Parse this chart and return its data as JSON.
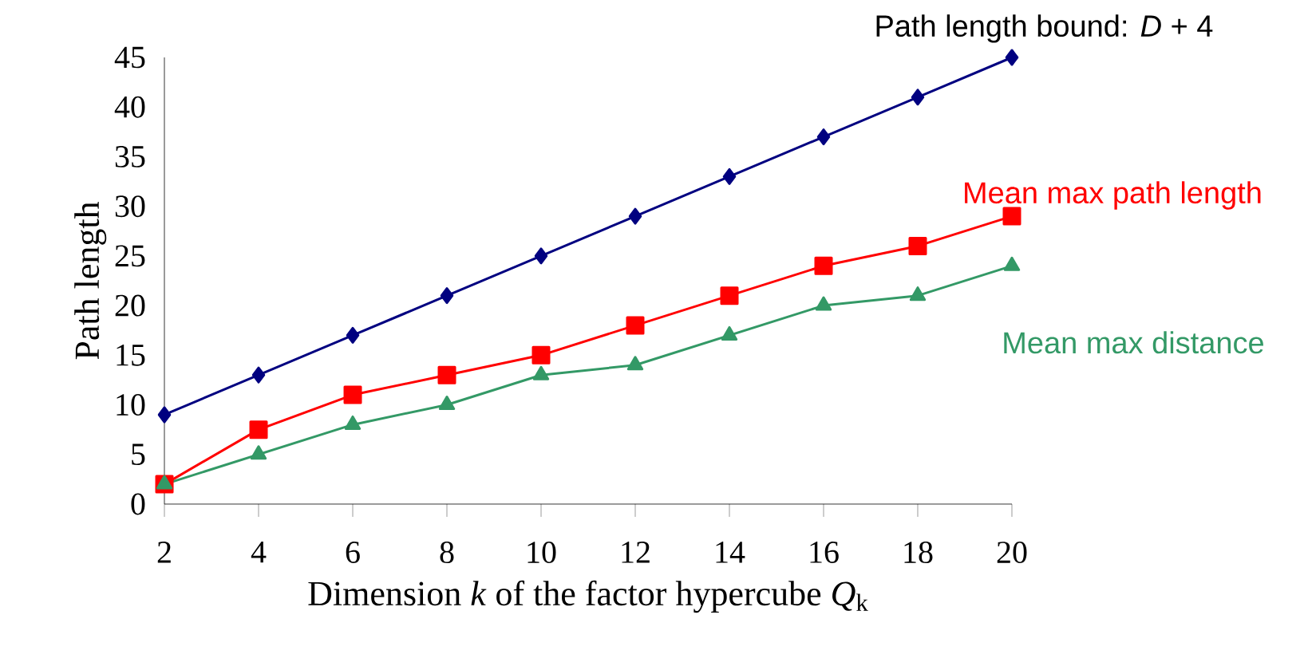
{
  "chart_data": {
    "type": "line",
    "xlabel": "Dimension *k* of the factor hypercube *Q*$_{k}$",
    "ylabel": "Path length",
    "x": [
      2,
      4,
      6,
      8,
      10,
      12,
      14,
      16,
      18,
      20
    ],
    "xlim": [
      2,
      20
    ],
    "xticks": [
      2,
      4,
      6,
      8,
      10,
      12,
      14,
      16,
      18,
      20
    ],
    "ylim": [
      0,
      45
    ],
    "yticks": [
      0,
      5,
      10,
      15,
      20,
      25,
      30,
      35,
      40,
      45
    ],
    "grid": false,
    "legend": false,
    "line_style": "solid",
    "series": [
      {
        "name": "Path length bound: *D* + 4",
        "color": "#000080",
        "marker": "diamond",
        "values": [
          9,
          13,
          17,
          21,
          25,
          29,
          33,
          37,
          41,
          45
        ]
      },
      {
        "name": "Mean max path length",
        "color": "#ff0000",
        "marker": "square",
        "values": [
          2,
          7.5,
          11,
          13,
          15,
          18,
          21,
          24,
          26,
          29
        ]
      },
      {
        "name": "Mean max distance",
        "color": "#339966",
        "marker": "triangle",
        "values": [
          2,
          5,
          8,
          10,
          13,
          14,
          17,
          20,
          21,
          24
        ]
      }
    ]
  }
}
